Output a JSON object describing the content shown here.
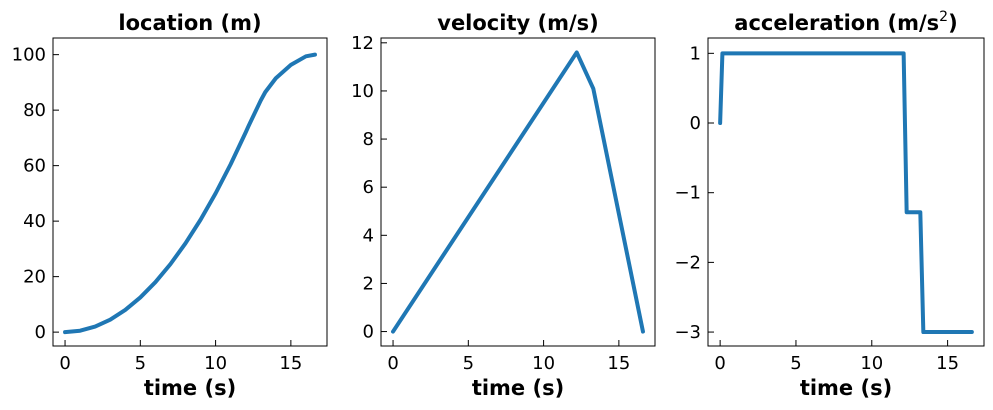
{
  "colors": {
    "line": "#1f77b4",
    "axes": "#000000",
    "background": "#ffffff"
  },
  "chart_data": [
    {
      "type": "line",
      "title": "location (m)",
      "title_sup": "",
      "xlabel": "time (s)",
      "ylabel": "",
      "xlim": [
        -0.8,
        17.4
      ],
      "ylim": [
        -5,
        106
      ],
      "xticks": [
        0,
        5,
        10,
        15
      ],
      "yticks": [
        0,
        20,
        40,
        60,
        80,
        100
      ],
      "ytick_labels": [
        "0",
        "20",
        "40",
        "60",
        "80",
        "100"
      ],
      "grid": false,
      "x": [
        0,
        1,
        2,
        3,
        4,
        5,
        6,
        7,
        8,
        9,
        10,
        11,
        12,
        12.2,
        13,
        13.3,
        14,
        15,
        16,
        16.6
      ],
      "y": [
        0,
        0.5,
        2.0,
        4.5,
        8.0,
        12.5,
        18.0,
        24.5,
        32.0,
        40.5,
        50.0,
        60.5,
        72.0,
        74.4,
        83.5,
        86.5,
        91.5,
        96.3,
        99.4,
        100
      ]
    },
    {
      "type": "line",
      "title": "velocity (m/s)",
      "title_sup": "",
      "xlabel": "time (s)",
      "ylabel": "",
      "xlim": [
        -0.8,
        17.4
      ],
      "ylim": [
        -0.6,
        12.2
      ],
      "xticks": [
        0,
        5,
        10,
        15
      ],
      "yticks": [
        0,
        2,
        4,
        6,
        8,
        10,
        12
      ],
      "ytick_labels": [
        "0",
        "2",
        "4",
        "6",
        "8",
        "10",
        "12"
      ],
      "grid": false,
      "x": [
        0,
        12.2,
        13.3,
        16.6
      ],
      "y": [
        0,
        11.6,
        10.1,
        0
      ]
    },
    {
      "type": "line",
      "title": "acceleration (m/s",
      "title_sup": "2",
      "title_suffix": ")",
      "xlabel": "time (s)",
      "ylabel": "",
      "xlim": [
        -0.8,
        17.4
      ],
      "ylim": [
        -3.2,
        1.22
      ],
      "xticks": [
        0,
        5,
        10,
        15
      ],
      "yticks": [
        1,
        0,
        -1,
        -2,
        -3
      ],
      "ytick_labels": [
        "1",
        "0",
        "−1",
        "−2",
        "−3"
      ],
      "grid": false,
      "x": [
        0,
        0.15,
        12.1,
        12.3,
        13.2,
        13.4,
        16.6
      ],
      "y": [
        0,
        1,
        1,
        -1.28,
        -1.28,
        -3,
        -3
      ]
    }
  ]
}
